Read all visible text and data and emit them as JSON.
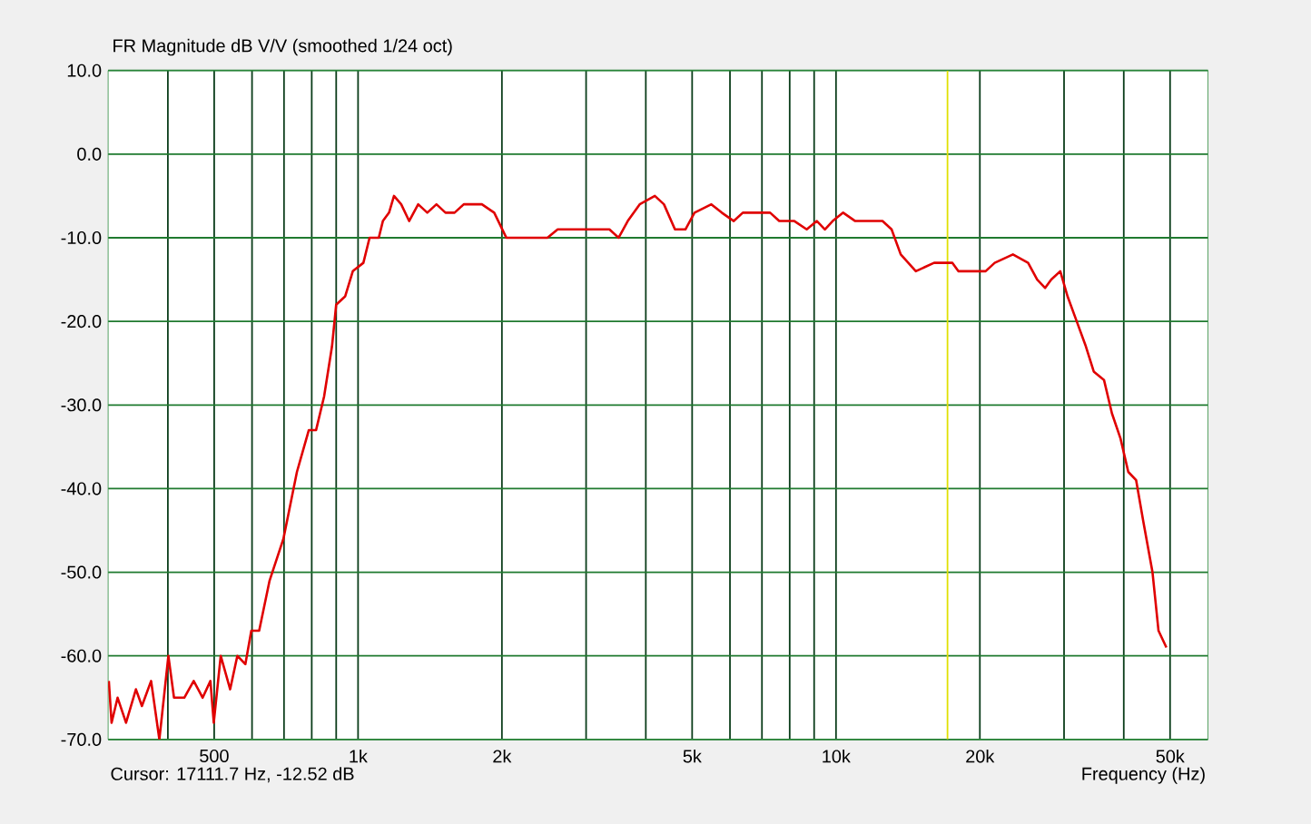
{
  "chart_data": {
    "type": "line",
    "title": "FR Magnitude dB V/V (smoothed 1/24 oct)",
    "xlabel": "Frequency (Hz)",
    "annotations": [
      "Cursor: 17111.7 Hz, -12.52 dB"
    ],
    "log": "x",
    "grid": true,
    "color": "#e00000",
    "xlim": [
      300,
      60000
    ],
    "ylim": [
      -70,
      10
    ],
    "xticks": [
      {
        "value": 400,
        "label": null
      },
      500,
      {
        "value": 600,
        "label": null
      },
      {
        "value": 700,
        "label": null
      },
      {
        "value": 800,
        "label": null
      },
      {
        "value": 900,
        "label": null
      },
      {
        "value": 1000,
        "label": "1k"
      },
      {
        "value": 2000,
        "label": "2k"
      },
      {
        "value": 3000,
        "label": null
      },
      {
        "value": 4000,
        "label": null
      },
      {
        "value": 5000,
        "label": "5k"
      },
      {
        "value": 6000,
        "label": null
      },
      {
        "value": 7000,
        "label": null
      },
      {
        "value": 8000,
        "label": null
      },
      {
        "value": 9000,
        "label": null
      },
      {
        "value": 10000,
        "label": "10k"
      },
      {
        "value": 20000,
        "label": "20k"
      },
      {
        "value": 30000,
        "label": null
      },
      {
        "value": 40000,
        "label": null
      },
      {
        "value": 50000,
        "label": "50k"
      }
    ],
    "yticks": [
      {
        "value": -70,
        "label": "-70.0"
      },
      {
        "value": -60,
        "label": "-60.0"
      },
      {
        "value": -50,
        "label": "-50.0"
      },
      {
        "value": -40,
        "label": "-40.0"
      },
      {
        "value": -30,
        "label": "-30.0"
      },
      {
        "value": -20,
        "label": "-20.0"
      },
      {
        "value": -10,
        "label": "-10.0"
      },
      {
        "value": 0,
        "label": "0.0"
      },
      {
        "value": 10,
        "label": "10.0"
      }
    ],
    "ref_lines": [
      {
        "axis": "x",
        "value": 17111.7,
        "color": "#e0e000"
      }
    ],
    "x": [
      301,
      305,
      314,
      327,
      343,
      353,
      369,
      384,
      401,
      412,
      433,
      453,
      473,
      491,
      499,
      516,
      540,
      559,
      581,
      598,
      621,
      653,
      698,
      745,
      789,
      817,
      849,
      882,
      900,
      940,
      975,
      1026,
      1057,
      1105,
      1127,
      1161,
      1189,
      1231,
      1279,
      1336,
      1396,
      1459,
      1524,
      1592,
      1664,
      1739,
      1816,
      1927,
      2043,
      2197,
      2363,
      2490,
      2616,
      2858,
      3121,
      3357,
      3509,
      3667,
      3884,
      4178,
      4365,
      4603,
      4841,
      5058,
      5486,
      5768,
      6111,
      6383,
      7281,
      7607,
      8181,
      8684,
      9120,
      9479,
      9841,
      10350,
      10970,
      11970,
      12510,
      13070,
      13660,
      14690,
      16040,
      17520,
      18030,
      19390,
      20560,
      21480,
      23450,
      25230,
      26360,
      27390,
      28210,
      29460,
      30510,
      31890,
      33330,
      34620,
      36370,
      37790,
      39380,
      40880,
      42460,
      43970,
      45940,
      47290,
      49120
    ],
    "values": [
      -63,
      -68,
      -65,
      -68,
      -64,
      -66,
      -63,
      -70,
      -60,
      -65,
      -65,
      -63,
      -65,
      -63,
      -68,
      -60,
      -64,
      -60,
      -61,
      -57,
      -57,
      -51,
      -46,
      -38,
      -33,
      -33,
      -29,
      -23,
      -18,
      -17,
      -14,
      -13,
      -10,
      -10,
      -8,
      -7,
      -5,
      -6,
      -8,
      -6,
      -7,
      -6,
      -7,
      -7,
      -6,
      -6,
      -6,
      -7,
      -10,
      -10,
      -10,
      -10,
      -9,
      -9,
      -9,
      -9,
      -10,
      -8,
      -6,
      -5,
      -6,
      -9,
      -9,
      -7,
      -6,
      -7,
      -8,
      -7,
      -7,
      -8,
      -8,
      -9,
      -8,
      -9,
      -8,
      -7,
      -8,
      -8,
      -8,
      -9,
      -12,
      -14,
      -13,
      -13,
      -14,
      -14,
      -14,
      -13,
      -12,
      -13,
      -15,
      -16,
      -15,
      -14,
      -17,
      -20,
      -23,
      -26,
      -27,
      -31,
      -34,
      -38,
      -39,
      -44,
      -50,
      -57,
      -59
    ]
  }
}
